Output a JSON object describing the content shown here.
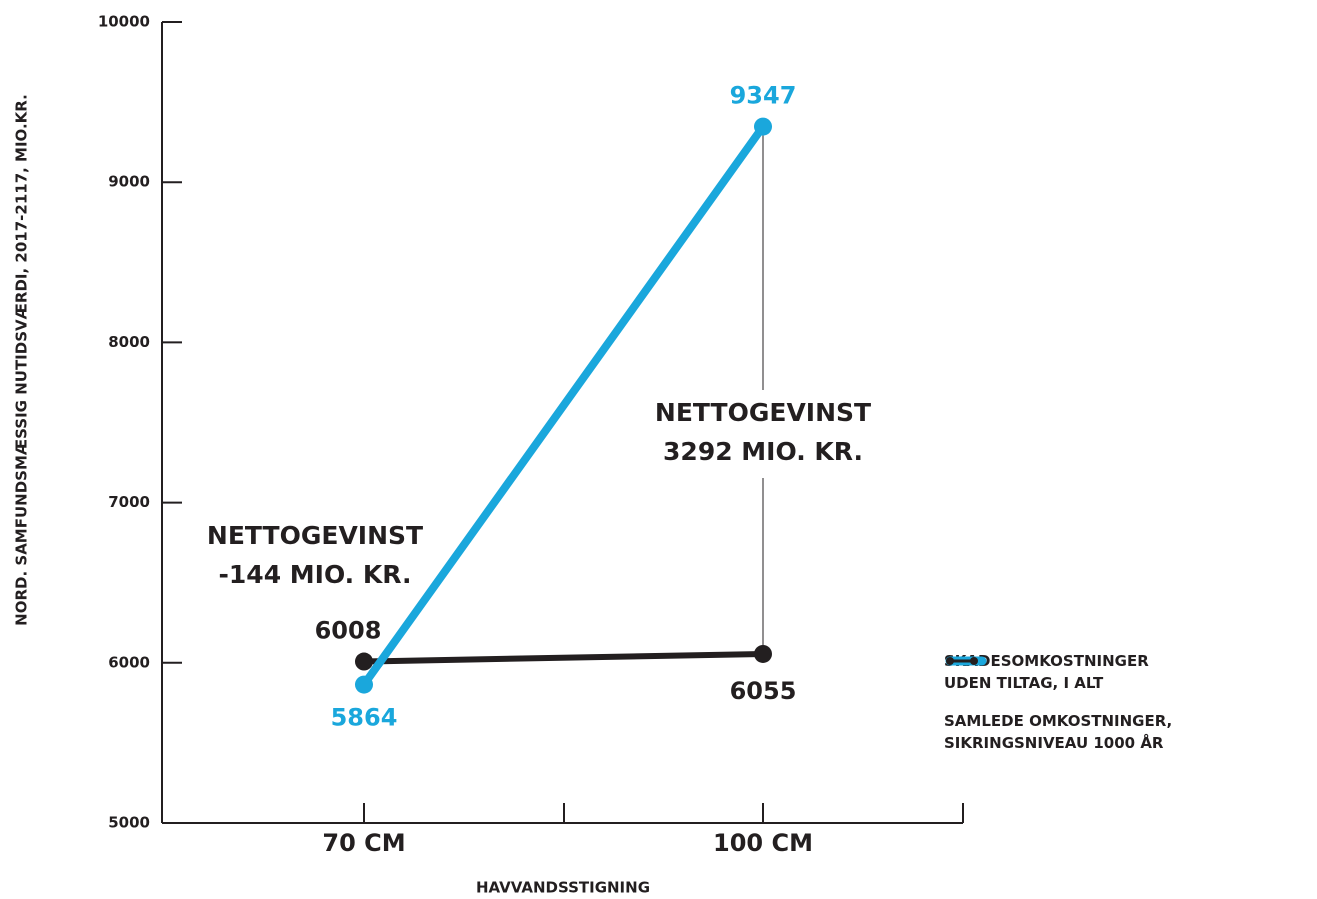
{
  "chart_data": {
    "type": "line",
    "y_label": "NORD. SAMFUNDSMÆSSIG NUTIDSVÆRDI, 2017-2117, MIO.KR.",
    "x_label": "HAVVANDSSTIGNING",
    "categories": [
      "70 CM",
      "100 CM"
    ],
    "series": [
      {
        "name": "SKADESOMKOSTNINGER\nUDEN TILTAG, I ALT",
        "color": "#1aa7dc",
        "values": [
          5864,
          9347
        ]
      },
      {
        "name": "SAMLEDE OMKOSTNINGER,\nSIKRINGSNIVEAU 1000 ÅR",
        "color": "#231f20",
        "values": [
          6008,
          6055
        ]
      }
    ],
    "annotations": [
      "NETTOGEVINST\n-144 MIO. KR.",
      "NETTOGEVINST\n3292 MIO. KR."
    ],
    "ylim": [
      5000,
      10000
    ],
    "yticks": [
      5000,
      6000,
      7000,
      8000,
      9000,
      10000
    ]
  }
}
